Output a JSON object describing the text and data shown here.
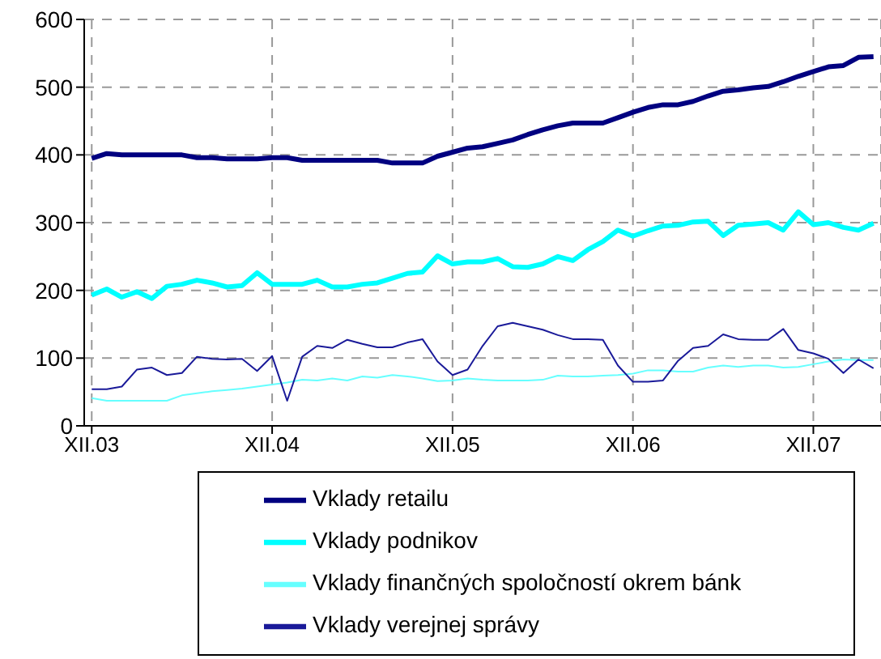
{
  "chart_data": {
    "type": "line",
    "categories": [
      "XII.03",
      null,
      null,
      null,
      null,
      null,
      null,
      null,
      null,
      null,
      null,
      null,
      "XII.04",
      null,
      null,
      null,
      null,
      null,
      null,
      null,
      null,
      null,
      null,
      null,
      "XII.05",
      null,
      null,
      null,
      null,
      null,
      null,
      null,
      null,
      null,
      null,
      null,
      "XII.06",
      null,
      null,
      null,
      null,
      null,
      null,
      null,
      null,
      null,
      null,
      null,
      "XII.07",
      null,
      null,
      null,
      null
    ],
    "series": [
      {
        "name": "Vklady retailu",
        "color": "#000080",
        "values": [
          395,
          402,
          400,
          400,
          400,
          400,
          400,
          396,
          396,
          394,
          394,
          394,
          396,
          396,
          392,
          392,
          392,
          392,
          392,
          392,
          388,
          388,
          388,
          398,
          404,
          410,
          412,
          417,
          422,
          430,
          437,
          443,
          447,
          447,
          447,
          455,
          463,
          470,
          474,
          474,
          479,
          487,
          494,
          496,
          499,
          501,
          508,
          516,
          523,
          530,
          532,
          544,
          545
        ]
      },
      {
        "name": "Vklady podnikov",
        "color": "#00ffff",
        "values": [
          193,
          202,
          190,
          198,
          188,
          206,
          209,
          215,
          211,
          205,
          207,
          226,
          209,
          209,
          209,
          215,
          205,
          205,
          209,
          211,
          218,
          225,
          227,
          251,
          239,
          242,
          242,
          247,
          235,
          234,
          239,
          250,
          244,
          260,
          272,
          289,
          280,
          288,
          295,
          296,
          301,
          302,
          281,
          296,
          298,
          300,
          289,
          316,
          297,
          300,
          293,
          289,
          299
        ]
      },
      {
        "name": "Vklady finančných spoločností okrem bánk",
        "color": "#66ffff",
        "values": [
          41,
          37,
          37,
          37,
          37,
          37,
          45,
          48,
          51,
          53,
          55,
          58,
          61,
          64,
          68,
          67,
          70,
          67,
          73,
          71,
          75,
          73,
          70,
          66,
          67,
          70,
          68,
          67,
          67,
          67,
          68,
          74,
          73,
          73,
          74,
          75,
          77,
          82,
          82,
          80,
          80,
          86,
          89,
          87,
          89,
          89,
          86,
          87,
          91,
          95,
          98,
          97,
          97
        ]
      },
      {
        "name": "Vklady verejnej správy",
        "color": "#1a1a99",
        "values": [
          54,
          54,
          58,
          83,
          86,
          75,
          78,
          102,
          99,
          98,
          99,
          81,
          103,
          37,
          102,
          118,
          115,
          127,
          121,
          116,
          116,
          123,
          128,
          95,
          75,
          83,
          118,
          147,
          152,
          147,
          142,
          134,
          128,
          128,
          127,
          89,
          65,
          65,
          67,
          96,
          115,
          118,
          135,
          128,
          127,
          127,
          143,
          112,
          107,
          99,
          78,
          98,
          85
        ]
      }
    ],
    "ylim": [
      0,
      600
    ],
    "yticks": [
      0,
      100,
      200,
      300,
      400,
      500,
      600
    ],
    "grid": true,
    "legend": "bottom",
    "marker": "none",
    "line_style": "solid"
  }
}
